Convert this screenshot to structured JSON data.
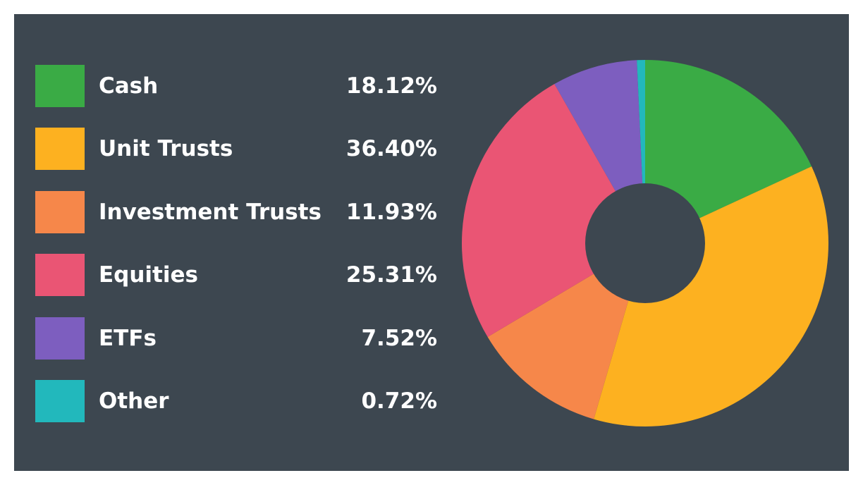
{
  "chart_data": {
    "type": "pie",
    "donut": true,
    "legend_position": "left",
    "background_color": "#3d4750",
    "slices": [
      {
        "label": "Cash",
        "value": 18.12,
        "value_label": "18.12%",
        "color": "#3aab45"
      },
      {
        "label": "Unit Trusts",
        "value": 36.4,
        "value_label": "36.40%",
        "color": "#fdb120"
      },
      {
        "label": "Investment Trusts",
        "value": 11.93,
        "value_label": "11.93%",
        "color": "#f6874a"
      },
      {
        "label": "Equities",
        "value": 25.31,
        "value_label": "25.31%",
        "color": "#ea5574"
      },
      {
        "label": "ETFs",
        "value": 7.52,
        "value_label": "7.52%",
        "color": "#7d5ebf"
      },
      {
        "label": "Other",
        "value": 0.72,
        "value_label": "0.72%",
        "color": "#22b8bc"
      }
    ]
  }
}
